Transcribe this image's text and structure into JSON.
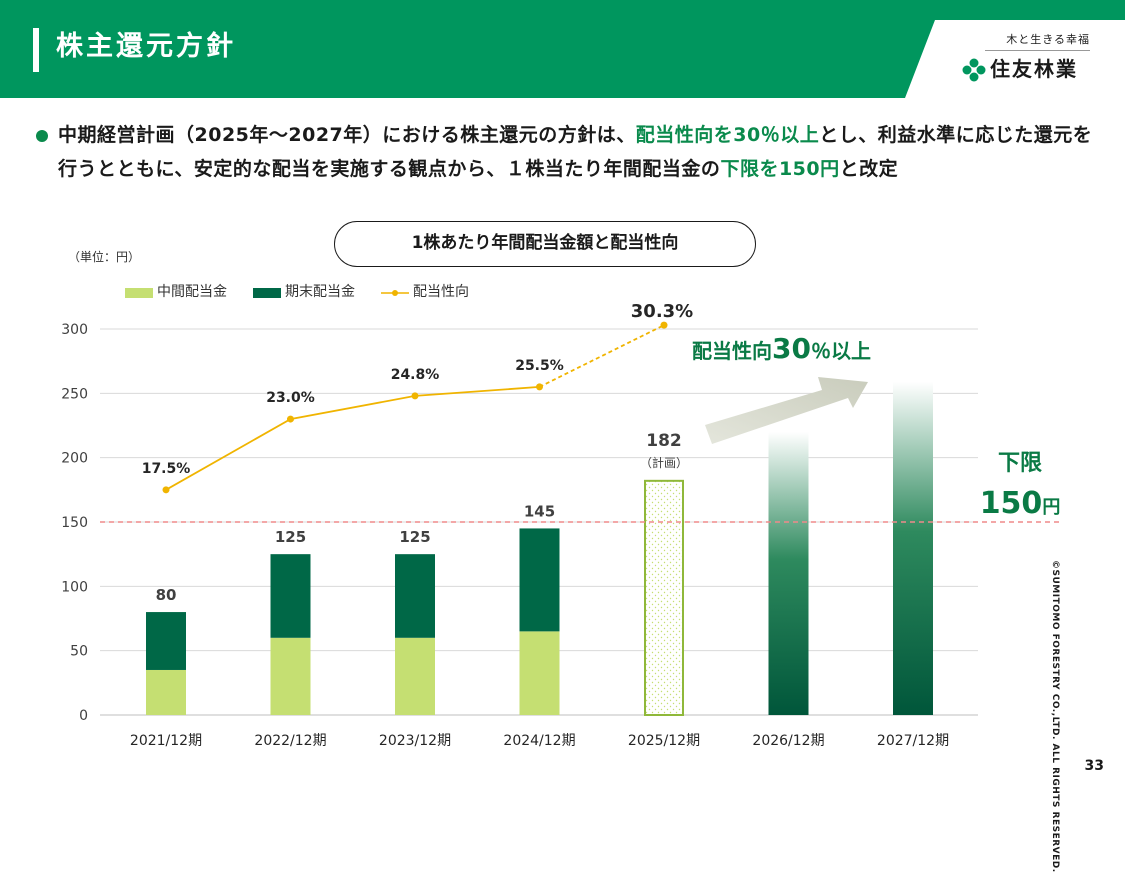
{
  "slide": {
    "title": "株主還元方針",
    "logo_tagline": "木と生きる幸福",
    "logo_name": "住友林業",
    "intro": {
      "part1": "中期経営計画（2025年～2027年）における株主還元の方針は、",
      "highlight1": "配当性向を30％以上",
      "part2": "とし、利益水準に応じた還元を行うとともに、安定的な配当を実施する観点から、１株当たり年間配当金の",
      "highlight2": "下限を150円",
      "part3": "と改定"
    },
    "chart_title": "1株あたり年間配当金額と配当性向",
    "unit_note": "（単位：円）",
    "copyright": "©SUMITOMO FORESTRY CO.,LTD. ALL RIGHTS RESERVED.",
    "page_number": "33"
  },
  "chart_data": {
    "type": "bar",
    "categories": [
      "2021/12期",
      "2022/12期",
      "2023/12期",
      "2024/12期",
      "2025/12期",
      "2026/12期",
      "2027/12期"
    ],
    "series": [
      {
        "name": "中間配当金",
        "values": [
          35,
          60,
          60,
          65,
          null,
          null,
          null
        ],
        "color": "#c5df72"
      },
      {
        "name": "期末配当金",
        "values": [
          45,
          65,
          65,
          80,
          null,
          null,
          null
        ],
        "color": "#006847"
      },
      {
        "name": "配当性向",
        "type": "line",
        "axis": "percent",
        "values": [
          17.5,
          23.0,
          24.8,
          25.5,
          30.3,
          null,
          null
        ],
        "color": "#f0b400"
      }
    ],
    "totals": [
      80,
      125,
      125,
      145,
      182,
      null,
      null
    ],
    "total_labels": [
      "80",
      "125",
      "125",
      "145",
      "182",
      "",
      ""
    ],
    "payout_labels": [
      "17.5%",
      "23.0%",
      "24.8%",
      "25.5%",
      "30.3%",
      "",
      ""
    ],
    "plan_note": "（計画）",
    "plan_bar_value": 182,
    "future_bars": [
      220,
      259
    ],
    "yticks": [
      0,
      50,
      100,
      150,
      200,
      250,
      300
    ],
    "ylim": [
      0,
      300
    ],
    "floor_line": {
      "value": 150,
      "label_top": "下限",
      "label_value": "150",
      "label_unit": "円"
    },
    "target_label": {
      "prefix": "配当性向",
      "number": "30",
      "suffix": "％以上"
    },
    "legend_position": "top-left",
    "grid": true,
    "colors": {
      "brand": "#00965e",
      "accent": "#0a8a4c",
      "interim": "#c5df72",
      "year_end": "#006847",
      "payout": "#f0b400",
      "floor": "#ef8a8a"
    }
  }
}
